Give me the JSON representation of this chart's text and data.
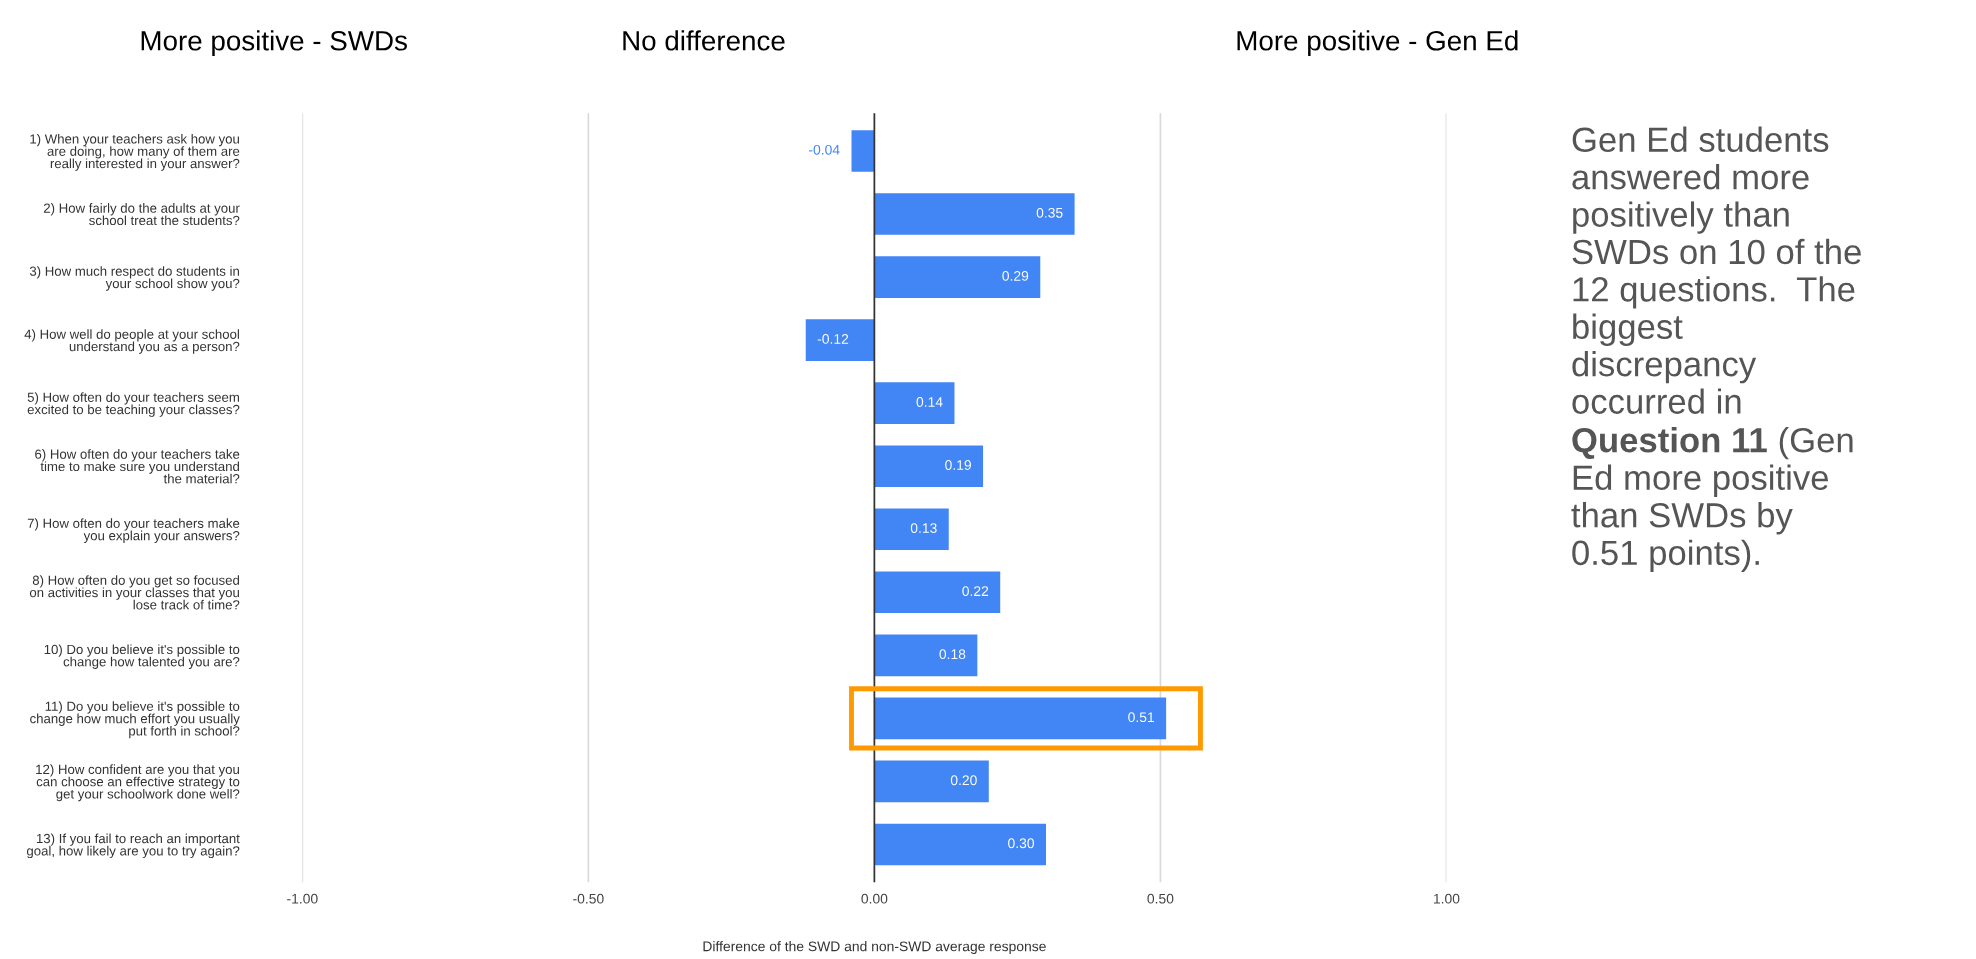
{
  "chart_data": {
    "type": "bar",
    "orientation": "horizontal",
    "title": "No difference",
    "xlabel": "Difference of the SWD and non-SWD average response",
    "categories": [
      "1) When your teachers ask how you\nare doing, how many of them are\nreally interested in your answer?",
      "2) How fairly do the adults at your\nschool treat the students?",
      "3) How much respect do students in\nyour school show you?",
      "4) How well do people at your school\nunderstand you as a person?",
      "5) How often do your teachers seem\nexcited to be teaching your classes?",
      "6) How often do your teachers take\ntime to make sure you understand\nthe material?",
      "7) How often do your teachers make\nyou explain your answers?",
      "8) How often do you get so focused\non activities in your classes that you\nlose track of time?",
      "10) Do you believe it's possible to\nchange how talented you are?",
      "11) Do you believe it's possible to\nchange how much effort you usually\nput forth in school?",
      "12) How confident are you that you\ncan choose an effective strategy to\nget your schoolwork done well?",
      "13) If you fail to reach an important\ngoal, how likely are you to try again?"
    ],
    "values": [
      -0.04,
      0.35,
      0.29,
      -0.12,
      0.14,
      0.19,
      0.13,
      0.22,
      0.18,
      0.51,
      0.2,
      0.3
    ],
    "value_labels": [
      "-0.04",
      "0.35",
      "0.29",
      "-0.12",
      "0.14",
      "0.19",
      "0.13",
      "0.22",
      "0.18",
      "0.51",
      "0.20",
      "0.30"
    ],
    "color": "#4285f4",
    "xlim": [
      -1,
      1
    ],
    "xticks": [
      {
        "value": -1,
        "label": "-1.00"
      },
      {
        "value": -0.5,
        "label": "-0.50"
      },
      {
        "value": 0,
        "label": "0.00"
      },
      {
        "value": 0.5,
        "label": "0.50"
      },
      {
        "value": 1,
        "label": "1.00"
      }
    ],
    "grid": "x",
    "annotations": [
      "Gen Ed students\nanswered more\npositively than\nSWDs on 10 of the\n12 questions.  The\nbiggest\ndiscrepancy\noccurred in",
      "Question 11",
      " (Gen\nEd more positive\nthan SWDs by\n0.51 points).",
      "More positive - SWDs",
      "More positive - Gen Ed"
    ]
  }
}
